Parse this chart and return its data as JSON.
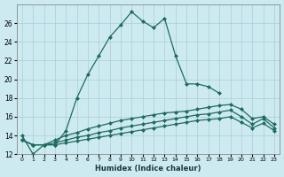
{
  "xlabel": "Humidex (Indice chaleur)",
  "background_color": "#cdeaf0",
  "grid_color": "#aacdd8",
  "line_color": "#1e6b5e",
  "x_values": [
    0,
    1,
    2,
    3,
    4,
    5,
    6,
    7,
    8,
    9,
    10,
    11,
    12,
    13,
    14,
    15,
    16,
    17,
    18,
    19,
    20,
    21,
    22,
    23
  ],
  "series_main": [
    14,
    12,
    13,
    13,
    14.5,
    18,
    20.5,
    22.5,
    24.5,
    25.8,
    27.2,
    26.2,
    25.5,
    26.5,
    22.5,
    19.5,
    19.5,
    19.2,
    18.5,
    null,
    null,
    null,
    null,
    null
  ],
  "series_a": [
    13.5,
    13,
    13,
    13.5,
    14.0,
    14.3,
    14.7,
    15.0,
    15.3,
    15.6,
    15.8,
    16.0,
    16.2,
    16.4,
    16.5,
    16.6,
    16.8,
    17.0,
    17.2,
    17.3,
    16.8,
    15.8,
    16.0,
    15.2
  ],
  "series_b": [
    13.5,
    13,
    13,
    13.2,
    13.5,
    13.8,
    14.0,
    14.3,
    14.5,
    14.8,
    15.0,
    15.2,
    15.4,
    15.6,
    15.8,
    16.0,
    16.2,
    16.3,
    16.5,
    16.7,
    16.0,
    15.2,
    15.8,
    14.8
  ],
  "series_c": [
    13.5,
    13,
    13,
    13.0,
    13.2,
    13.4,
    13.6,
    13.8,
    14.0,
    14.2,
    14.4,
    14.6,
    14.8,
    15.0,
    15.2,
    15.4,
    15.6,
    15.7,
    15.8,
    16.0,
    15.4,
    14.8,
    15.3,
    14.5
  ],
  "ylim": [
    12,
    28
  ],
  "xlim": [
    -0.5,
    23.5
  ],
  "yticks": [
    12,
    14,
    16,
    18,
    20,
    22,
    24,
    26
  ],
  "xticks": [
    0,
    1,
    2,
    3,
    4,
    5,
    6,
    7,
    8,
    9,
    10,
    11,
    12,
    13,
    14,
    15,
    16,
    17,
    18,
    19,
    20,
    21,
    22,
    23
  ],
  "markersize": 2.5,
  "linewidth": 0.9
}
